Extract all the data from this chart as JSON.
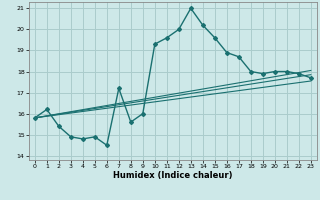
{
  "xlabel": "Humidex (Indice chaleur)",
  "background_color": "#cde8e8",
  "grid_color": "#aacccc",
  "line_color": "#1a7070",
  "xlim": [
    -0.5,
    23.5
  ],
  "ylim": [
    13.8,
    21.3
  ],
  "xticks": [
    0,
    1,
    2,
    3,
    4,
    5,
    6,
    7,
    8,
    9,
    10,
    11,
    12,
    13,
    14,
    15,
    16,
    17,
    18,
    19,
    20,
    21,
    22,
    23
  ],
  "yticks": [
    14,
    15,
    16,
    17,
    18,
    19,
    20,
    21
  ],
  "curve1_x": [
    0,
    1,
    2,
    3,
    4,
    5,
    6,
    7,
    8,
    9,
    10,
    11,
    12,
    13,
    14,
    15,
    16,
    17,
    18,
    19,
    20,
    21,
    22,
    23
  ],
  "curve1_y": [
    15.8,
    16.2,
    15.4,
    14.9,
    14.8,
    14.9,
    14.5,
    17.2,
    15.6,
    16.0,
    19.3,
    19.6,
    20.0,
    21.0,
    20.2,
    19.6,
    18.9,
    18.7,
    18.0,
    17.9,
    18.0,
    18.0,
    17.9,
    17.7
  ],
  "line1_x": [
    0,
    23
  ],
  "line1_y": [
    15.8,
    17.85
  ],
  "line2_x": [
    0,
    23
  ],
  "line2_y": [
    15.8,
    17.55
  ],
  "line3_x": [
    0,
    23
  ],
  "line3_y": [
    15.8,
    18.05
  ]
}
